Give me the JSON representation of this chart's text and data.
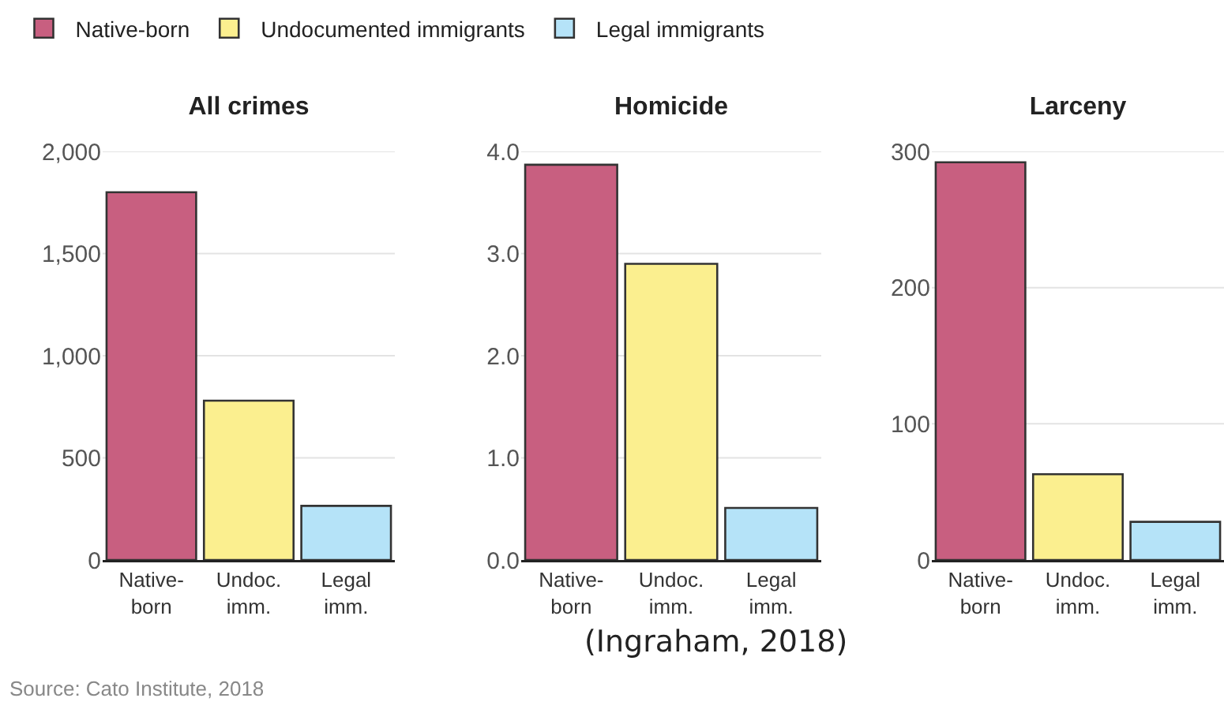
{
  "chart_data": [
    {
      "type": "bar",
      "title": "All crimes",
      "categories": [
        "Native-\nborn",
        "Undoc.\nimm.",
        "Legal\nimm."
      ],
      "legend": "top",
      "grid": "y",
      "series": [
        {
          "name": "Native-born",
          "color": "#c85f80",
          "values": [
            1800,
            null,
            null
          ]
        },
        {
          "name": "Undocumented immigrants",
          "color": "#fbef8f",
          "values": [
            null,
            780,
            null
          ]
        },
        {
          "name": "Legal immigrants",
          "color": "#b5e3f8",
          "values": [
            null,
            null,
            265
          ]
        }
      ],
      "ylim": [
        0,
        2000
      ],
      "yticks": [
        0,
        500,
        {
          "value": 1000,
          "label": "1,000"
        },
        {
          "value": 1500,
          "label": "1,500"
        },
        {
          "value": 2000,
          "label": "2,000"
        }
      ],
      "annotations": [
        "Source: Cato Institute, 2018"
      ]
    },
    {
      "type": "bar",
      "title": "Homicide",
      "categories": [
        "Native-\nborn",
        "Undoc.\nimm.",
        "Legal\nimm."
      ],
      "grid": "y",
      "series": [
        {
          "color": "#c85f80",
          "values": [
            3.87,
            null,
            null
          ]
        },
        {
          "color": "#fbef8f",
          "values": [
            null,
            2.9,
            null
          ]
        },
        {
          "color": "#b5e3f8",
          "values": [
            null,
            null,
            0.51
          ]
        }
      ],
      "ylim": [
        0,
        4
      ],
      "yticks": [
        {
          "value": 0,
          "label": "0.0"
        },
        {
          "value": 1,
          "label": "1.0"
        },
        {
          "value": 2,
          "label": "2.0"
        },
        {
          "value": 3,
          "label": "3.0"
        },
        {
          "value": 4,
          "label": "4.0"
        }
      ],
      "annotations": [
        "(Ingraham, 2018)"
      ]
    },
    {
      "type": "bar",
      "title": "Larceny",
      "categories": [
        "Native-\nborn",
        "Undoc.\nimm.",
        "Legal\nimm."
      ],
      "grid": "y",
      "series": [
        {
          "color": "#c85f80",
          "values": [
            292,
            null,
            null
          ]
        },
        {
          "color": "#fbef8f",
          "values": [
            null,
            63,
            null
          ]
        },
        {
          "color": "#b5e3f8",
          "values": [
            null,
            null,
            28
          ]
        }
      ],
      "ylim": [
        0,
        300
      ],
      "yticks": [
        0,
        100,
        200,
        300
      ]
    }
  ]
}
